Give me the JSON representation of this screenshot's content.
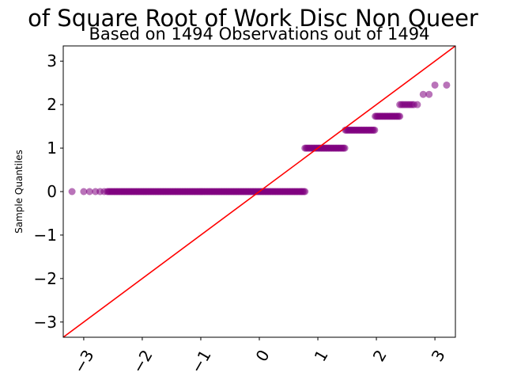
{
  "chart_data": {
    "type": "scatter",
    "title": "of Square Root of Work Disc Non Queer",
    "subtitle": "Based on 1494 Observations out of 1494",
    "xlabel": "",
    "ylabel": "Sample Quantiles",
    "xlim": [
      -3.35,
      3.35
    ],
    "ylim": [
      -3.35,
      3.35
    ],
    "xticks": [
      -3,
      -2,
      -1,
      0,
      1,
      2,
      3
    ],
    "yticks": [
      -3,
      -2,
      -1,
      0,
      1,
      2,
      3
    ],
    "xtick_labels": [
      "−3",
      "−2",
      "−1",
      "0",
      "1",
      "2",
      "3"
    ],
    "ytick_labels": [
      "−3",
      "−2",
      "−1",
      "0",
      "1",
      "2",
      "3"
    ],
    "grid": false,
    "series": [
      {
        "type": "scatter",
        "color": "#800080",
        "groups": [
          {
            "y": 0,
            "x_start": -2.6,
            "x_end": 0.78,
            "x_step": 0.02,
            "extra_x": [
              -3.2,
              -3.0,
              -2.9,
              -2.8,
              -2.72,
              -2.65
            ]
          },
          {
            "y": 1,
            "x_start": 0.78,
            "x_end": 1.47,
            "x_step": 0.02,
            "extra_x": []
          },
          {
            "y": 1.414,
            "x_start": 1.47,
            "x_end": 1.98,
            "x_step": 0.02,
            "extra_x": []
          },
          {
            "y": 1.732,
            "x_start": 1.98,
            "x_end": 2.4,
            "x_step": 0.02,
            "extra_x": []
          },
          {
            "y": 2,
            "x_start": 2.4,
            "x_end": 2.65,
            "x_step": 0.03,
            "extra_x": [
              2.7
            ]
          },
          {
            "y": 2.236,
            "x_start": 2.8,
            "x_end": 2.8,
            "x_step": 1,
            "extra_x": [
              2.9
            ]
          },
          {
            "y": 2.449,
            "x_start": 3.0,
            "x_end": 3.0,
            "x_step": 1,
            "extra_x": [
              3.2
            ]
          }
        ]
      },
      {
        "type": "line",
        "color": "#ff0000",
        "x": [
          -3.35,
          3.35
        ],
        "y": [
          -3.35,
          3.35
        ]
      }
    ]
  }
}
